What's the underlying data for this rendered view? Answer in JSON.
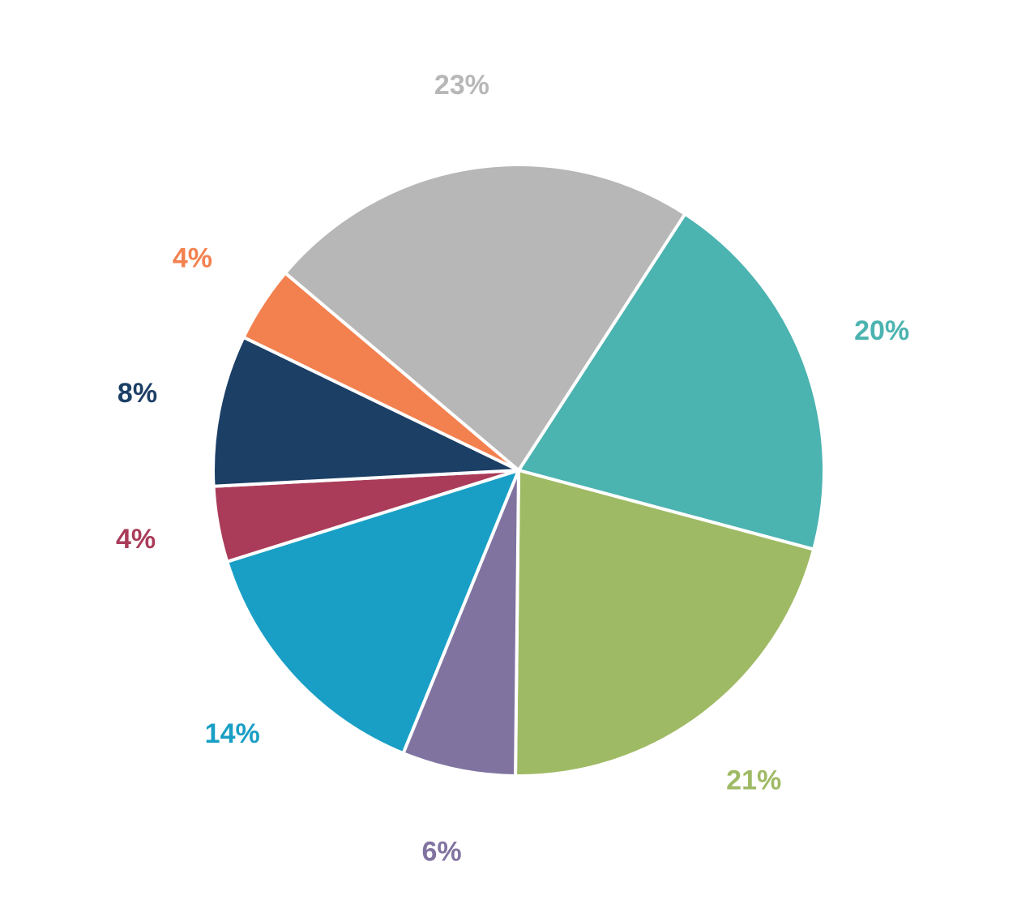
{
  "chart_data": {
    "type": "pie",
    "title": "",
    "legend": "none",
    "start_angle_deg": -57,
    "direction": "clockwise",
    "slices": [
      {
        "value": 20,
        "label": "20%",
        "color": "#4BB3B0"
      },
      {
        "value": 21,
        "label": "21%",
        "color": "#9FBA64"
      },
      {
        "value": 6,
        "label": "6%",
        "color": "#8073A0"
      },
      {
        "value": 14,
        "label": "14%",
        "color": "#199FC5"
      },
      {
        "value": 4,
        "label": "4%",
        "color": "#AA3C59"
      },
      {
        "value": 8,
        "label": "8%",
        "color": "#1C3F66"
      },
      {
        "value": 4,
        "label": "4%",
        "color": "#F3814F"
      },
      {
        "value": 23,
        "label": "23%",
        "color": "#B7B7B7"
      }
    ]
  }
}
